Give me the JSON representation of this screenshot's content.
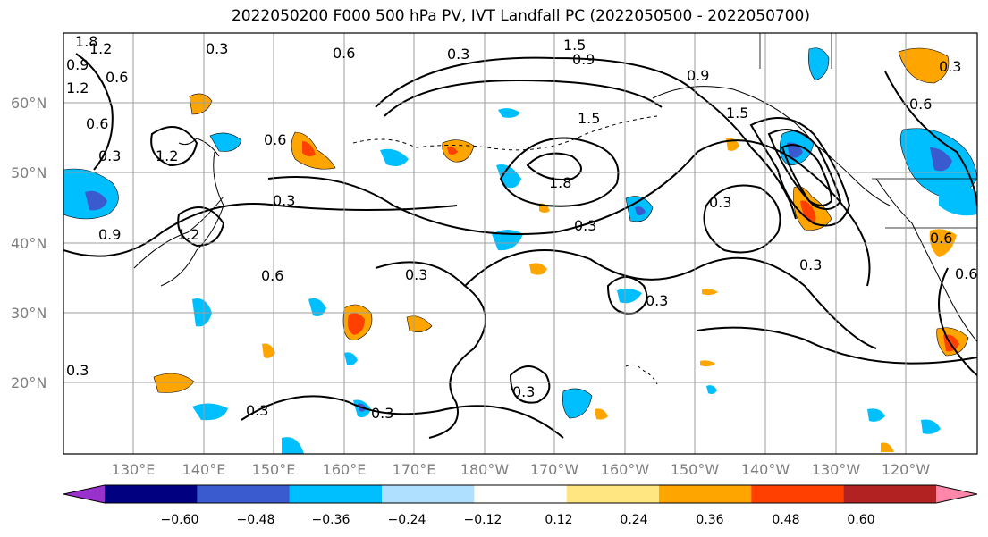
{
  "title": "2022050200 F000 500 hPa PV, IVT Landfall PC (2022050500 - 2022050700)",
  "lat_labels": [
    "60°N",
    "50°N",
    "40°N",
    "30°N",
    "20°N"
  ],
  "lon_labels": [
    "130°E",
    "140°E",
    "150°E",
    "160°E",
    "170°E",
    "180°W",
    "170°W",
    "160°W",
    "150°W",
    "140°W",
    "130°W",
    "120°W"
  ],
  "contour_labels": [
    "1.8",
    "1.2",
    "0.9",
    "0.6",
    "1.2",
    "0.6",
    "0.3",
    "0.3",
    "0.6",
    "0.3",
    "0.6",
    "1.5",
    "0.9",
    "1.2",
    "0.9",
    "0.3",
    "1.2",
    "0.9",
    "1.5",
    "1.8",
    "1.5",
    "0.3",
    "0.3",
    "0.3",
    "0.3",
    "0.3",
    "0.6",
    "0.3",
    "0.3",
    "0.3",
    "0.3",
    "0.3",
    "0.6",
    "0.6",
    "0.6"
  ],
  "colorbar": {
    "ticks": [
      "−0.60",
      "−0.48",
      "−0.36",
      "−0.24",
      "−0.12",
      "0.12",
      "0.24",
      "0.36",
      "0.48",
      "0.60"
    ],
    "colors": [
      "#9932cc",
      "#000080",
      "#3a5bd0",
      "#00bfff",
      "#b0e0ff",
      "#ffffff",
      "#ffe680",
      "#ffa500",
      "#ff4000",
      "#b22222",
      "#ff88aa"
    ]
  },
  "colors": {
    "grid": "#9e9e9e",
    "frame": "#000000",
    "neg_strong": "#3a5bd0",
    "neg_mid": "#00bfff",
    "neg_weak": "#b0e0ff",
    "pos_weak": "#ffe680",
    "pos_mid": "#ffa500",
    "pos_strong": "#ff4000"
  }
}
